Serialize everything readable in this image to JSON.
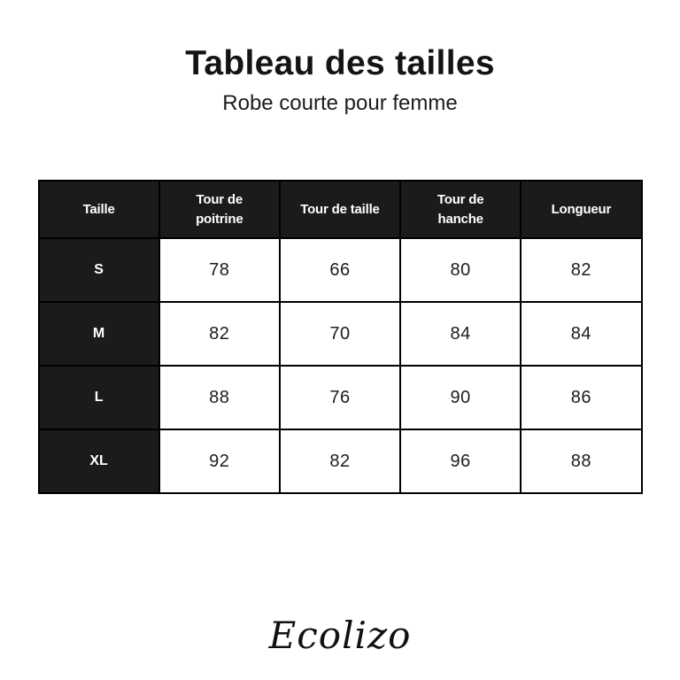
{
  "header": {
    "title": "Tableau des tailles",
    "subtitle": "Robe courte pour femme"
  },
  "table": {
    "columns": [
      "Taille",
      "Tour de\npoitrine",
      "Tour de taille",
      "Tour de\nhanche",
      "Longueur"
    ],
    "rows": [
      {
        "size": "S",
        "values": [
          "78",
          "66",
          "80",
          "82"
        ]
      },
      {
        "size": "M",
        "values": [
          "82",
          "70",
          "84",
          "84"
        ]
      },
      {
        "size": "L",
        "values": [
          "88",
          "76",
          "90",
          "86"
        ]
      },
      {
        "size": "XL",
        "values": [
          "92",
          "82",
          "96",
          "88"
        ]
      }
    ]
  },
  "footer": {
    "brand": "Ecolizo"
  },
  "colors": {
    "header_cell_background": "#1b1b1b",
    "border": "#000000",
    "title_text": "#141414",
    "cell_text": "#1d1d1d",
    "header_text": "#ffffff"
  },
  "chart_data": {
    "type": "table",
    "title": "Tableau des tailles",
    "subtitle": "Robe courte pour femme",
    "columns": [
      "Taille",
      "Tour de poitrine",
      "Tour de taille",
      "Tour de hanche",
      "Longueur"
    ],
    "rows": [
      [
        "S",
        78,
        66,
        80,
        82
      ],
      [
        "M",
        82,
        70,
        84,
        84
      ],
      [
        "L",
        88,
        76,
        90,
        86
      ],
      [
        "XL",
        92,
        82,
        96,
        88
      ]
    ]
  }
}
